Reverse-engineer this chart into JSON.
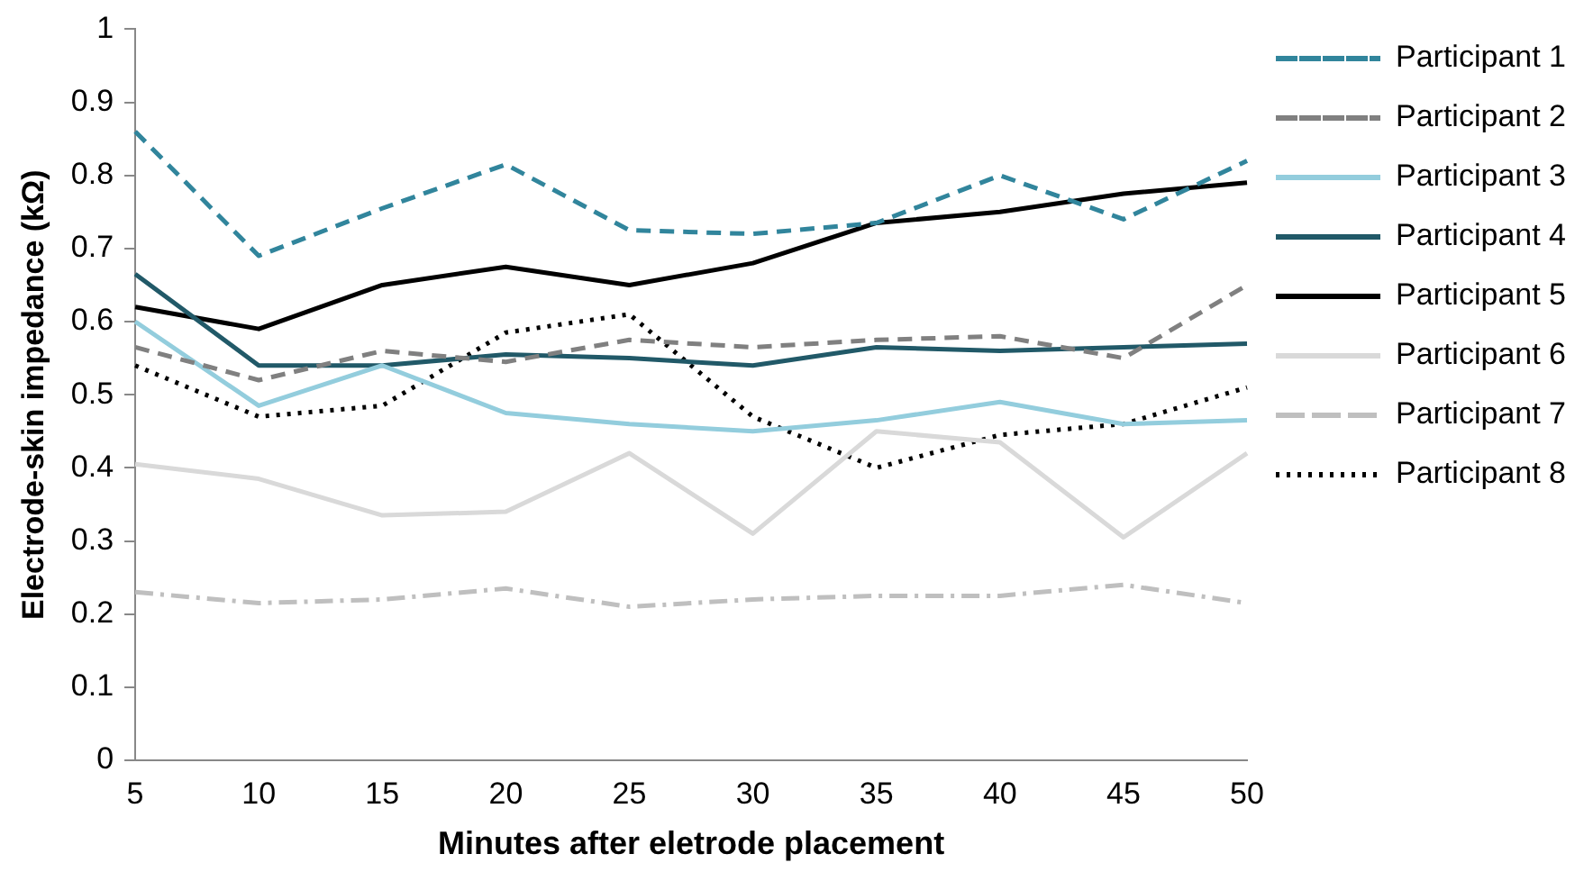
{
  "chart_data": {
    "type": "line",
    "xlabel": "Minutes after eletrode placement",
    "ylabel": "Electrode-skin impedance (kΩ)",
    "categories": [
      "5",
      "10",
      "15",
      "20",
      "25",
      "30",
      "35",
      "40",
      "45",
      "50"
    ],
    "ylim": [
      0,
      1
    ],
    "yticks": [
      0,
      0.1,
      0.2,
      0.3,
      0.4,
      0.5,
      0.6,
      0.7,
      0.8,
      0.9,
      1
    ],
    "grid": false,
    "legend": "right",
    "marker": "none",
    "series": [
      {
        "name": "Participant 1",
        "color": "#31859c",
        "line_style": "dashed",
        "values": [
          0.86,
          0.69,
          0.755,
          0.815,
          0.725,
          0.72,
          0.735,
          0.8,
          0.74,
          0.82
        ]
      },
      {
        "name": "Participant 2",
        "color": "#808080",
        "line_style": "dashed",
        "values": [
          0.565,
          0.52,
          0.56,
          0.545,
          0.575,
          0.565,
          0.575,
          0.58,
          0.55,
          0.65
        ]
      },
      {
        "name": "Participant 3",
        "color": "#93cddd",
        "line_style": "solid",
        "values": [
          0.6,
          0.485,
          0.54,
          0.475,
          0.46,
          0.45,
          0.465,
          0.49,
          0.46,
          0.465
        ]
      },
      {
        "name": "Participant 4",
        "color": "#215968",
        "line_style": "solid",
        "values": [
          0.665,
          0.54,
          0.54,
          0.555,
          0.55,
          0.54,
          0.565,
          0.56,
          0.565,
          0.57
        ]
      },
      {
        "name": "Participant 5",
        "color": "#000000",
        "line_style": "solid",
        "values": [
          0.62,
          0.59,
          0.65,
          0.675,
          0.65,
          0.68,
          0.735,
          0.75,
          0.775,
          0.79
        ]
      },
      {
        "name": "Participant 6",
        "color": "#d9d9d9",
        "line_style": "solid",
        "values": [
          0.405,
          0.385,
          0.335,
          0.34,
          0.42,
          0.31,
          0.45,
          0.435,
          0.305,
          0.42
        ]
      },
      {
        "name": "Participant 7",
        "color": "#bfbfbf",
        "line_style": "dashdot",
        "values": [
          0.23,
          0.215,
          0.22,
          0.235,
          0.21,
          0.22,
          0.225,
          0.225,
          0.24,
          0.215
        ]
      },
      {
        "name": "Participant 8",
        "color": "#000000",
        "line_style": "dotted",
        "values": [
          0.54,
          0.47,
          0.485,
          0.585,
          0.61,
          0.47,
          0.4,
          0.445,
          0.46,
          0.51
        ]
      }
    ]
  }
}
